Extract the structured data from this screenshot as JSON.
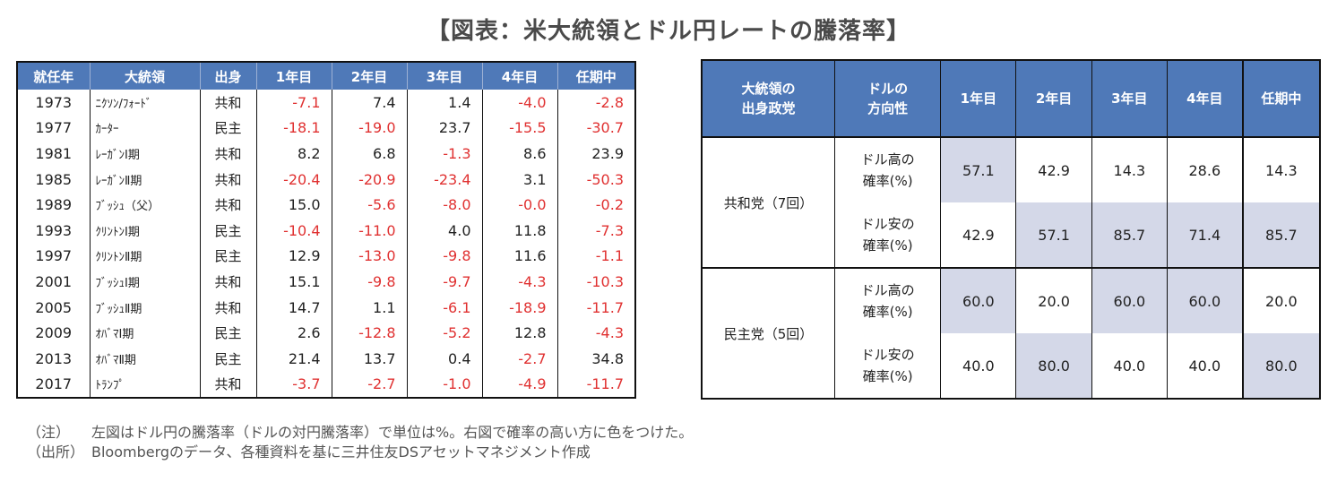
{
  "title": "【図表：米大統領とドル円レートの騰落率】",
  "left_table": {
    "headers": [
      "就任年",
      "大統領",
      "出身",
      "1年目",
      "2年目",
      "3年目",
      "4年目",
      "任期中"
    ],
    "rows": [
      {
        "year": "1973",
        "name": "ﾆｸｿﾝ/ﾌｫｰﾄﾞ",
        "party": "共和",
        "v": [
          "-7.1",
          "7.4",
          "1.4",
          "-4.0",
          "-2.8"
        ]
      },
      {
        "year": "1977",
        "name": "ｶｰﾀｰ",
        "party": "民主",
        "v": [
          "-18.1",
          "-19.0",
          "23.7",
          "-15.5",
          "-30.7"
        ]
      },
      {
        "year": "1981",
        "name": "ﾚｰｶﾞﾝⅠ期",
        "party": "共和",
        "v": [
          "8.2",
          "6.8",
          "-1.3",
          "8.6",
          "23.9"
        ]
      },
      {
        "year": "1985",
        "name": "ﾚｰｶﾞﾝⅡ期",
        "party": "共和",
        "v": [
          "-20.4",
          "-20.9",
          "-23.4",
          "3.1",
          "-50.3"
        ]
      },
      {
        "year": "1989",
        "name": "ﾌﾞｯｼｭ（父）",
        "party": "共和",
        "v": [
          "15.0",
          "-5.6",
          "-8.0",
          "-0.0",
          "-0.2"
        ]
      },
      {
        "year": "1993",
        "name": "ｸﾘﾝﾄﾝⅠ期",
        "party": "民主",
        "v": [
          "-10.4",
          "-11.0",
          "4.0",
          "11.8",
          "-7.3"
        ]
      },
      {
        "year": "1997",
        "name": "ｸﾘﾝﾄﾝⅡ期",
        "party": "民主",
        "v": [
          "12.9",
          "-13.0",
          "-9.8",
          "11.6",
          "-1.1"
        ]
      },
      {
        "year": "2001",
        "name": "ﾌﾞｯｼｭⅠ期",
        "party": "共和",
        "v": [
          "15.1",
          "-9.8",
          "-9.7",
          "-4.3",
          "-10.3"
        ]
      },
      {
        "year": "2005",
        "name": "ﾌﾞｯｼｭⅡ期",
        "party": "共和",
        "v": [
          "14.7",
          "1.1",
          "-6.1",
          "-18.9",
          "-11.7"
        ]
      },
      {
        "year": "2009",
        "name": "ｵﾊﾞﾏⅠ期",
        "party": "民主",
        "v": [
          "2.6",
          "-12.8",
          "-5.2",
          "12.8",
          "-4.3"
        ]
      },
      {
        "year": "2013",
        "name": "ｵﾊﾞﾏⅡ期",
        "party": "民主",
        "v": [
          "21.4",
          "13.7",
          "0.4",
          "-2.7",
          "34.8"
        ]
      },
      {
        "year": "2017",
        "name": "ﾄﾗﾝﾌﾟ",
        "party": "共和",
        "v": [
          "-3.7",
          "-2.7",
          "-1.0",
          "-4.9",
          "-11.7"
        ]
      }
    ]
  },
  "right_table": {
    "h_party": "大統領の出身政党",
    "h_party_l1": "大統領の",
    "h_party_l2": "出身政党",
    "h_dir_l1": "ドルの",
    "h_dir_l2": "方向性",
    "h_years": [
      "1年目",
      "2年目",
      "3年目",
      "4年目",
      "任期中"
    ],
    "rows": [
      {
        "party": "共和党（7回）",
        "dir_l1": "ドル高の",
        "dir_l2": "確率(%)",
        "v": [
          "57.1",
          "42.9",
          "14.3",
          "28.6",
          "14.3"
        ],
        "hl": [
          true,
          false,
          false,
          false,
          false
        ]
      },
      {
        "party": "",
        "dir_l1": "ドル安の",
        "dir_l2": "確率(%)",
        "v": [
          "42.9",
          "57.1",
          "85.7",
          "71.4",
          "85.7"
        ],
        "hl": [
          false,
          true,
          true,
          true,
          true
        ]
      },
      {
        "party": "民主党（5回）",
        "dir_l1": "ドル高の",
        "dir_l2": "確率(%)",
        "v": [
          "60.0",
          "20.0",
          "60.0",
          "60.0",
          "20.0"
        ],
        "hl": [
          true,
          false,
          true,
          true,
          false
        ]
      },
      {
        "party": "",
        "dir_l1": "ドル安の",
        "dir_l2": "確率(%)",
        "v": [
          "40.0",
          "80.0",
          "40.0",
          "40.0",
          "80.0"
        ],
        "hl": [
          false,
          true,
          false,
          false,
          true
        ]
      }
    ]
  },
  "notes": {
    "note_label": "（注）",
    "note_text": "左図はドル円の騰落率（ドルの対円騰落率）で単位は%。右図で確率の高い方に色をつけた。",
    "source_label": "（出所）",
    "source_text": "Bloombergのデータ、各種資料を基に三井住友DSアセットマネジメント作成"
  },
  "colors": {
    "header_bg": "#4f79b8",
    "negative": "#e03131",
    "highlight": "#d4d8e8"
  }
}
